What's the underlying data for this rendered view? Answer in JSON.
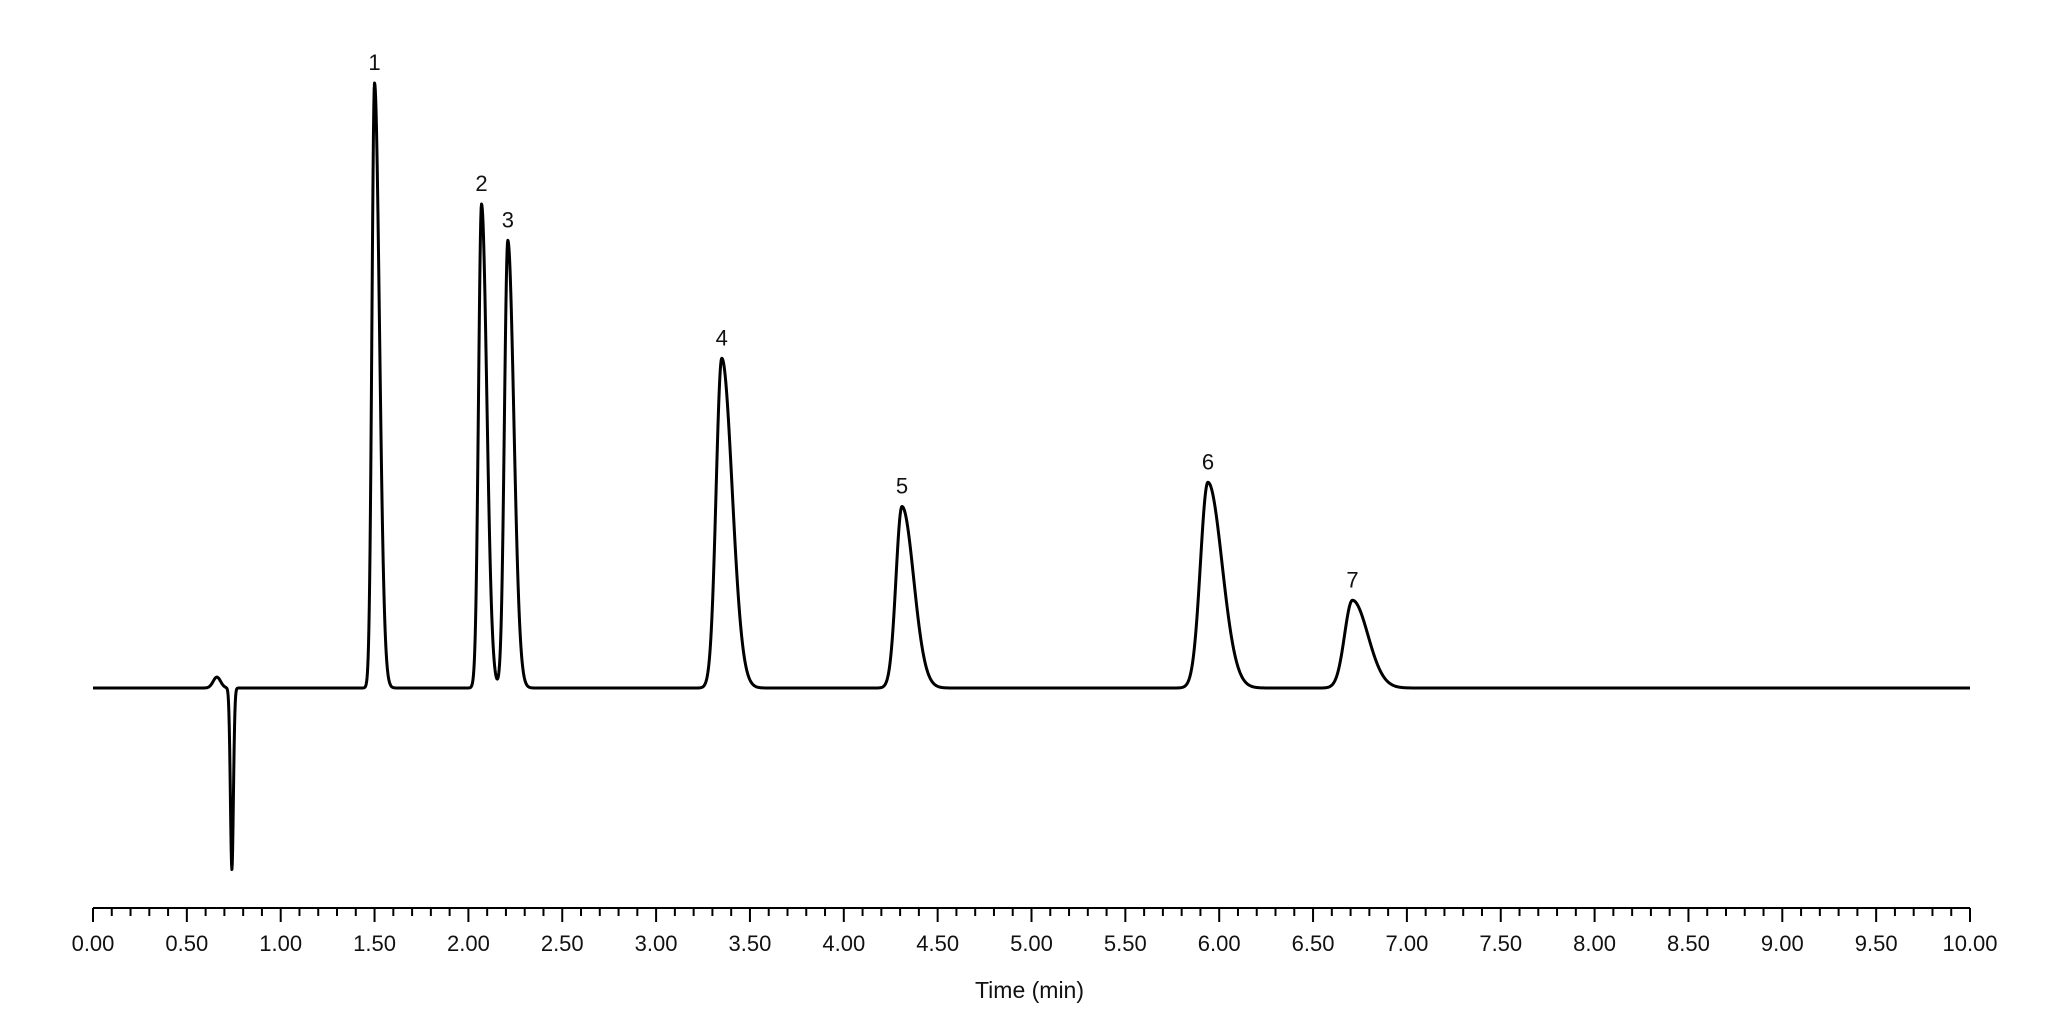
{
  "chart_data": {
    "type": "line",
    "title": "",
    "xlabel": "Time (min)",
    "ylabel": "",
    "xlim": [
      0,
      10
    ],
    "ylim": [
      -30,
      100
    ],
    "grid": false,
    "legend": "none",
    "x_ticks": [
      "0.00",
      "0.50",
      "1.00",
      "1.50",
      "2.00",
      "2.50",
      "3.00",
      "3.50",
      "4.00",
      "4.50",
      "5.00",
      "5.50",
      "6.00",
      "6.50",
      "7.00",
      "7.50",
      "8.00",
      "8.50",
      "9.00",
      "9.50",
      "10.00"
    ],
    "x_minor_step": 0.1,
    "line_color": "#000000",
    "peaks": [
      {
        "label": "1",
        "rt": 1.5,
        "height": 100,
        "width": 0.014,
        "tail": 0.012
      },
      {
        "label": "2",
        "rt": 2.07,
        "height": 80,
        "width": 0.016,
        "tail": 0.012
      },
      {
        "label": "3",
        "rt": 2.21,
        "height": 74,
        "width": 0.018,
        "tail": 0.014
      },
      {
        "label": "4",
        "rt": 3.35,
        "height": 54.5,
        "width": 0.03,
        "tail": 0.025
      },
      {
        "label": "5",
        "rt": 4.31,
        "height": 30,
        "width": 0.032,
        "tail": 0.03
      },
      {
        "label": "6",
        "rt": 5.94,
        "height": 34,
        "width": 0.04,
        "tail": 0.035
      },
      {
        "label": "7",
        "rt": 6.71,
        "height": 14.5,
        "width": 0.042,
        "tail": 0.04
      }
    ],
    "baseline_features": [
      {
        "rt": 0.66,
        "height": 1.8,
        "width": 0.02
      },
      {
        "rt": 0.74,
        "height": -30,
        "width": 0.008
      }
    ]
  }
}
